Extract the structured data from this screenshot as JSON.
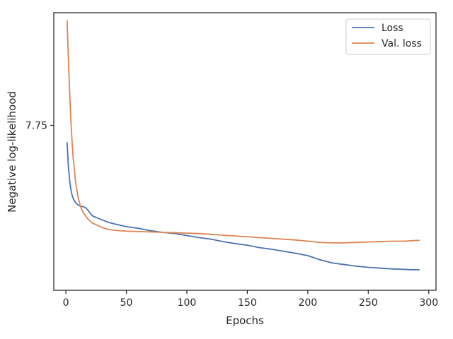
{
  "chart_data": {
    "type": "line",
    "title": "",
    "xlabel": "Epochs",
    "ylabel": "Negative log-likelihood",
    "xlim": [
      -10,
      306
    ],
    "ylim": [
      7.34,
      8.03
    ],
    "xticks": [
      0,
      50,
      100,
      150,
      200,
      250,
      300
    ],
    "yticks": [
      7.75
    ],
    "grid": false,
    "legend_position": "top-right",
    "series": [
      {
        "name": "Loss",
        "color": "#4c72b0",
        "x": [
          1,
          2,
          3,
          4,
          5,
          6,
          8,
          10,
          12,
          14,
          16,
          18,
          20,
          22,
          25,
          30,
          35,
          40,
          50,
          60,
          70,
          80,
          90,
          100,
          110,
          120,
          130,
          140,
          150,
          160,
          170,
          180,
          190,
          200,
          210,
          220,
          230,
          240,
          250,
          260,
          270,
          280,
          285,
          290,
          292
        ],
        "y": [
          7.707,
          7.65,
          7.615,
          7.593,
          7.578,
          7.568,
          7.558,
          7.552,
          7.549,
          7.548,
          7.546,
          7.54,
          7.532,
          7.525,
          7.521,
          7.515,
          7.509,
          7.505,
          7.498,
          7.494,
          7.488,
          7.484,
          7.481,
          7.476,
          7.471,
          7.467,
          7.461,
          7.456,
          7.452,
          7.446,
          7.442,
          7.437,
          7.432,
          7.426,
          7.416,
          7.408,
          7.404,
          7.4,
          7.397,
          7.395,
          7.393,
          7.392,
          7.391,
          7.391,
          7.391
        ]
      },
      {
        "name": "Val. loss",
        "color": "#dd8452",
        "x": [
          1,
          2,
          3,
          4,
          5,
          6,
          8,
          10,
          12,
          14,
          16,
          18,
          20,
          22,
          25,
          30,
          35,
          40,
          50,
          60,
          70,
          80,
          90,
          100,
          110,
          120,
          130,
          140,
          150,
          160,
          170,
          180,
          190,
          200,
          210,
          220,
          230,
          240,
          250,
          260,
          270,
          280,
          285,
          290,
          292
        ],
        "y": [
          8.01,
          7.92,
          7.84,
          7.77,
          7.715,
          7.67,
          7.61,
          7.572,
          7.549,
          7.535,
          7.526,
          7.518,
          7.512,
          7.507,
          7.503,
          7.496,
          7.491,
          7.489,
          7.487,
          7.486,
          7.485,
          7.484,
          7.483,
          7.482,
          7.481,
          7.479,
          7.477,
          7.475,
          7.473,
          7.471,
          7.469,
          7.467,
          7.465,
          7.462,
          7.459,
          7.458,
          7.458,
          7.459,
          7.46,
          7.461,
          7.462,
          7.462,
          7.463,
          7.464,
          7.464
        ]
      }
    ]
  }
}
